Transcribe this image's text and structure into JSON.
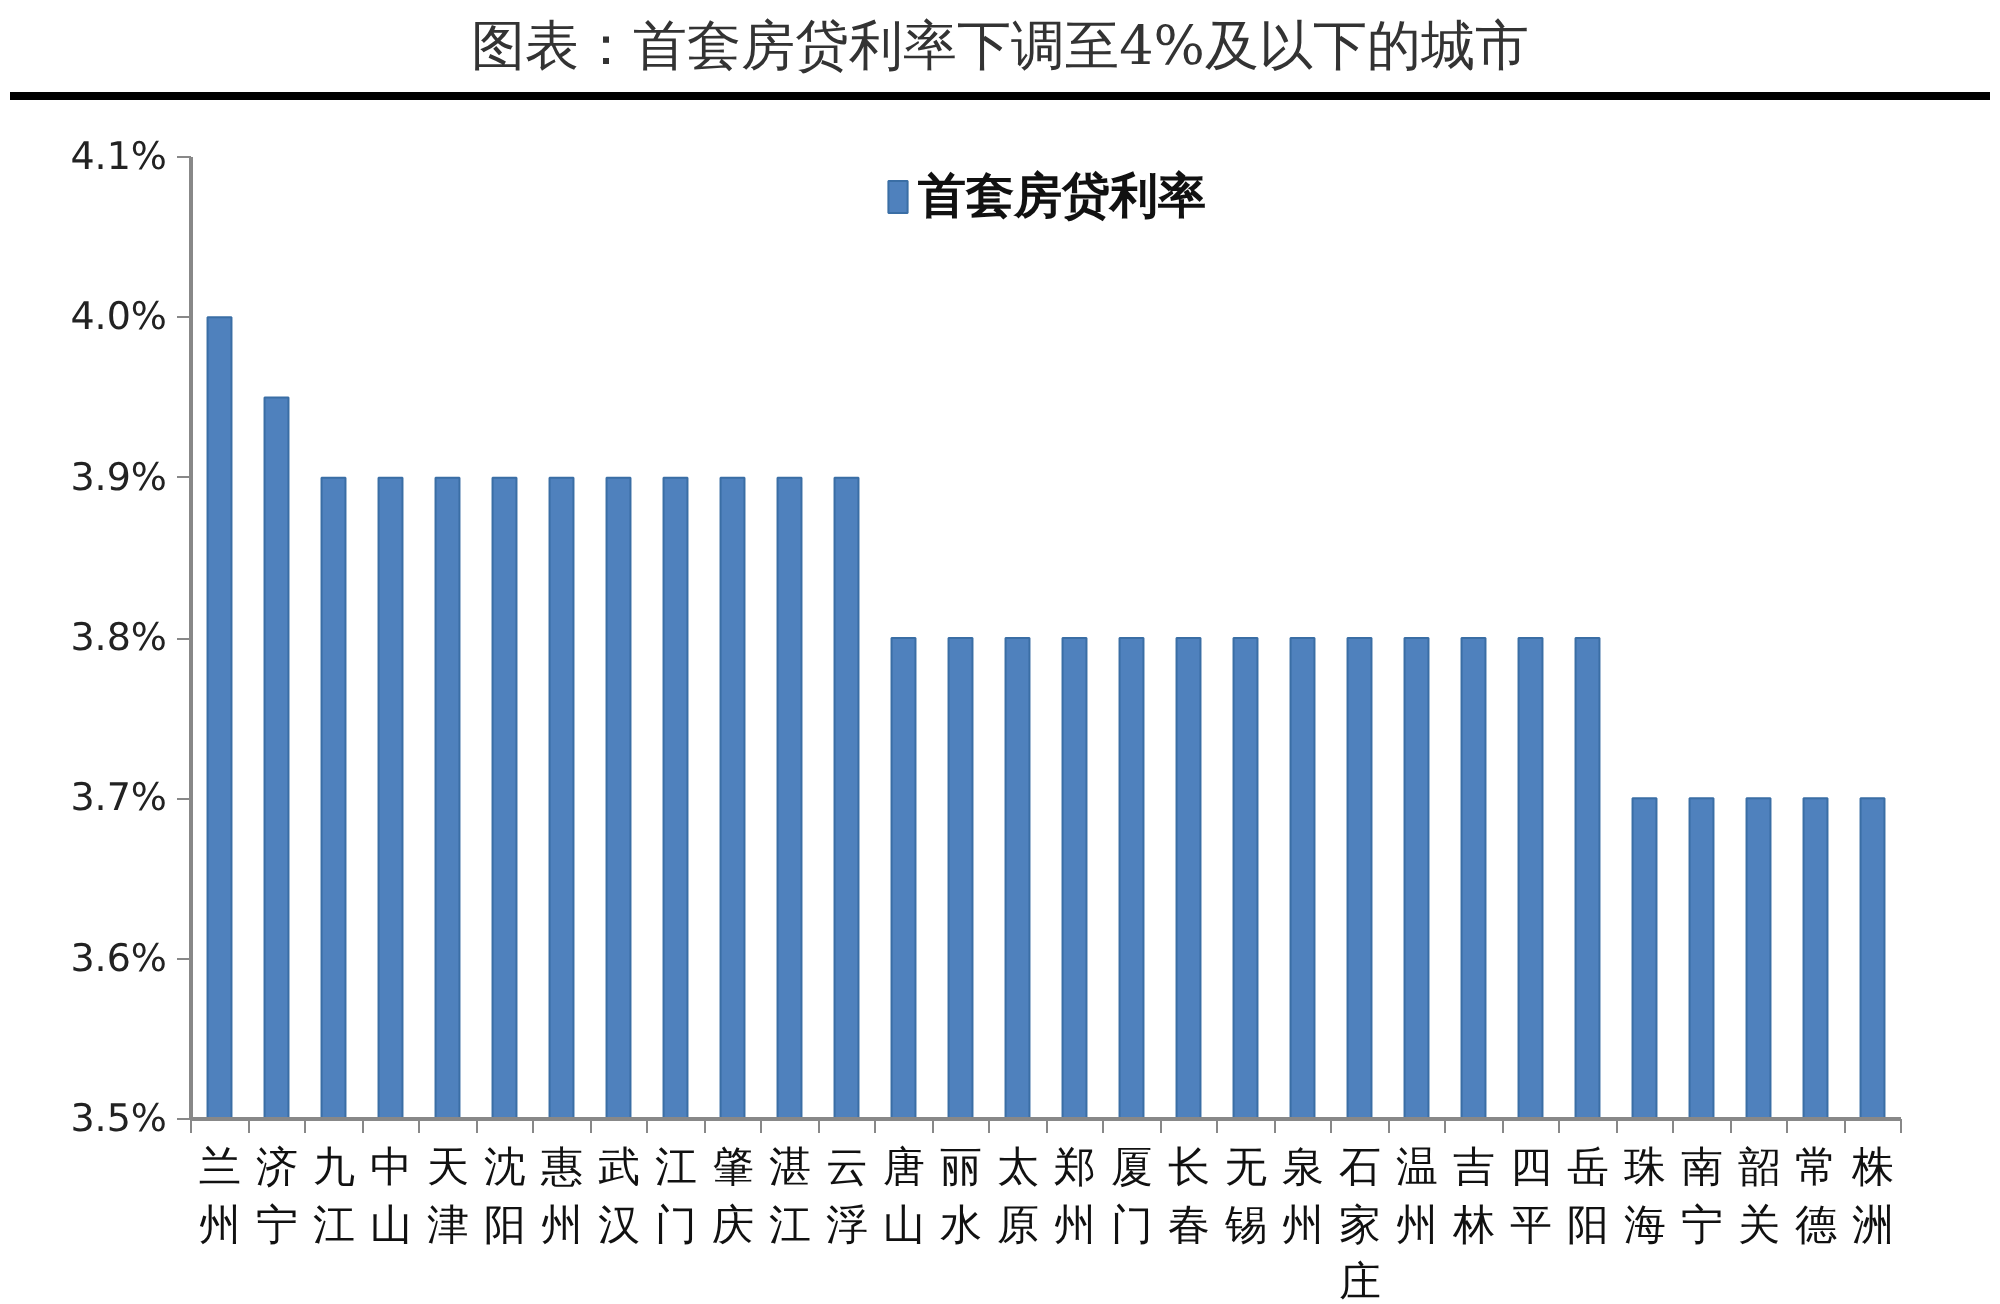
{
  "chart_data": {
    "type": "bar",
    "title": "图表：首套房贷利率下调至4%及以下的城市",
    "categories": [
      "兰州",
      "济宁",
      "九江",
      "中山",
      "天津",
      "沈阳",
      "惠州",
      "武汉",
      "江门",
      "肇庆",
      "湛江",
      "云浮",
      "唐山",
      "丽水",
      "太原",
      "郑州",
      "厦门",
      "长春",
      "无锡",
      "泉州",
      "石家庄",
      "温州",
      "吉林",
      "四平",
      "岳阳",
      "珠海",
      "南宁",
      "韶关",
      "常德",
      "株洲"
    ],
    "series": [
      {
        "name": "首套房贷利率",
        "color": "#4f81bd",
        "values": [
          4.0,
          3.95,
          3.9,
          3.9,
          3.9,
          3.9,
          3.9,
          3.9,
          3.9,
          3.9,
          3.9,
          3.9,
          3.8,
          3.8,
          3.8,
          3.8,
          3.8,
          3.8,
          3.8,
          3.8,
          3.8,
          3.8,
          3.8,
          3.8,
          3.8,
          3.7,
          3.7,
          3.7,
          3.7,
          3.7
        ]
      }
    ],
    "ylim": [
      3.5,
      4.1
    ],
    "yticks": [
      {
        "value": 3.5,
        "label": "3.5%"
      },
      {
        "value": 3.6,
        "label": "3.6%"
      },
      {
        "value": 3.7,
        "label": "3.7%"
      },
      {
        "value": 3.8,
        "label": "3.8%"
      },
      {
        "value": 3.9,
        "label": "3.9%"
      },
      {
        "value": 4.0,
        "label": "4.0%"
      },
      {
        "value": 4.1,
        "label": "4.1%"
      }
    ],
    "grid": false,
    "legend": "top"
  }
}
